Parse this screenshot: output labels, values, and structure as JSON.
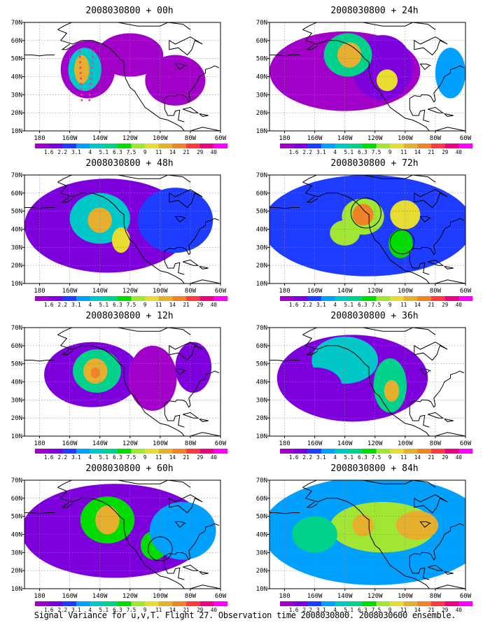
{
  "panels": [
    {
      "title": "2008030800 + 00h",
      "blobs": [
        {
          "lon": -148,
          "lat": 44,
          "rx": 18,
          "ry": 16,
          "v": 2
        },
        {
          "lon": -120,
          "lat": 52,
          "rx": 22,
          "ry": 12,
          "v": 1.7
        },
        {
          "lon": -90,
          "lat": 38,
          "rx": 20,
          "ry": 14,
          "v": 1.8
        },
        {
          "lon": -150,
          "lat": 44,
          "rx": 11,
          "ry": 12,
          "v": 6
        },
        {
          "lon": -152,
          "lat": 44,
          "rx": 5,
          "ry": 8,
          "v": 14
        }
      ],
      "obs_points": true
    },
    {
      "title": "2008030800 + 12h",
      "blobs": [
        {
          "lon": -145,
          "lat": 44,
          "rx": 32,
          "ry": 18,
          "v": 2.5
        },
        {
          "lon": -105,
          "lat": 42,
          "rx": 16,
          "ry": 18,
          "v": 2
        },
        {
          "lon": -78,
          "lat": 48,
          "rx": 12,
          "ry": 14,
          "v": 2.5
        },
        {
          "lon": -142,
          "lat": 46,
          "rx": 16,
          "ry": 12,
          "v": 7
        },
        {
          "lon": -143,
          "lat": 46,
          "rx": 8,
          "ry": 7,
          "v": 14
        },
        {
          "lon": -143,
          "lat": 45,
          "rx": 3,
          "ry": 3,
          "v": 21
        }
      ],
      "obs_points": false
    },
    {
      "title": "2008030800 + 24h",
      "blobs": [
        {
          "lon": -140,
          "lat": 43,
          "rx": 50,
          "ry": 22,
          "v": 2
        },
        {
          "lon": -115,
          "lat": 45,
          "rx": 20,
          "ry": 18,
          "v": 3
        },
        {
          "lon": -138,
          "lat": 52,
          "rx": 16,
          "ry": 12,
          "v": 7
        },
        {
          "lon": -137,
          "lat": 52,
          "rx": 8,
          "ry": 7,
          "v": 14
        },
        {
          "lon": -112,
          "lat": 38,
          "rx": 7,
          "ry": 6,
          "v": 11
        },
        {
          "lon": -70,
          "lat": 42,
          "rx": 10,
          "ry": 14,
          "v": 5
        }
      ],
      "obs_points": false
    },
    {
      "title": "2008030800 + 36h",
      "blobs": [
        {
          "lon": -135,
          "lat": 42,
          "rx": 50,
          "ry": 24,
          "v": 2.2
        },
        {
          "lon": -140,
          "lat": 52,
          "rx": 22,
          "ry": 13,
          "v": 6
        },
        {
          "lon": -110,
          "lat": 38,
          "rx": 11,
          "ry": 15,
          "v": 7
        },
        {
          "lon": -109,
          "lat": 35,
          "rx": 5,
          "ry": 6,
          "v": 14
        },
        {
          "lon": -160,
          "lat": 38,
          "rx": 18,
          "ry": 10,
          "v": 3
        }
      ],
      "obs_points": false
    },
    {
      "title": "2008030800 + 48h",
      "blobs": [
        {
          "lon": -135,
          "lat": 42,
          "rx": 55,
          "ry": 26,
          "v": 2.5
        },
        {
          "lon": -140,
          "lat": 46,
          "rx": 20,
          "ry": 14,
          "v": 6
        },
        {
          "lon": -140,
          "lat": 45,
          "rx": 8,
          "ry": 7,
          "v": 14
        },
        {
          "lon": -126,
          "lat": 34,
          "rx": 6,
          "ry": 7,
          "v": 11
        },
        {
          "lon": -90,
          "lat": 45,
          "rx": 25,
          "ry": 18,
          "v": 3.5
        }
      ],
      "obs_points": false
    },
    {
      "title": "2008030800 + 60h",
      "blobs": [
        {
          "lon": -130,
          "lat": 42,
          "rx": 62,
          "ry": 26,
          "v": 3
        },
        {
          "lon": -135,
          "lat": 48,
          "rx": 18,
          "ry": 13,
          "v": 7.5
        },
        {
          "lon": -135,
          "lat": 48,
          "rx": 8,
          "ry": 8,
          "v": 14
        },
        {
          "lon": -104,
          "lat": 34,
          "rx": 9,
          "ry": 8,
          "v": 8
        },
        {
          "lon": -85,
          "lat": 42,
          "rx": 22,
          "ry": 16,
          "v": 4
        }
      ],
      "circles": [
        {
          "lon": -100,
          "lat": 32,
          "r": 8
        }
      ],
      "obs_points": false
    },
    {
      "title": "2008030800 + 72h",
      "blobs": [
        {
          "lon": -125,
          "lat": 42,
          "rx": 70,
          "ry": 28,
          "v": 3.5
        },
        {
          "lon": -128,
          "lat": 47,
          "rx": 14,
          "ry": 10,
          "v": 9
        },
        {
          "lon": -128,
          "lat": 48,
          "rx": 7,
          "ry": 6,
          "v": 21
        },
        {
          "lon": -100,
          "lat": 48,
          "rx": 10,
          "ry": 8,
          "v": 11
        },
        {
          "lon": -103,
          "lat": 32,
          "rx": 8,
          "ry": 8,
          "v": 8
        },
        {
          "lon": -140,
          "lat": 38,
          "rx": 10,
          "ry": 7,
          "v": 9
        }
      ],
      "circles": [
        {
          "lon": -126,
          "lat": 49,
          "r": 10
        },
        {
          "lon": -102,
          "lat": 33,
          "r": 8
        }
      ],
      "obs_points": false
    },
    {
      "title": "2008030800 + 84h",
      "blobs": [
        {
          "lon": -120,
          "lat": 42,
          "rx": 75,
          "ry": 30,
          "v": 4
        },
        {
          "lon": -115,
          "lat": 44,
          "rx": 35,
          "ry": 14,
          "v": 9
        },
        {
          "lon": -92,
          "lat": 45,
          "rx": 14,
          "ry": 8,
          "v": 14
        },
        {
          "lon": -128,
          "lat": 45,
          "rx": 7,
          "ry": 6,
          "v": 14
        },
        {
          "lon": -160,
          "lat": 40,
          "rx": 15,
          "ry": 10,
          "v": 7
        }
      ],
      "obs_points": false
    }
  ],
  "colorbar": {
    "labels": [
      "1.6",
      "2.2",
      "3.1",
      "4",
      "5.1",
      "6.3",
      "7.5",
      "9",
      "11",
      "14",
      "21",
      "29",
      "40"
    ],
    "colors": [
      "#a000c8",
      "#7d00dc",
      "#1e3cff",
      "#00a0ff",
      "#00c8c8",
      "#00d28c",
      "#00dc00",
      "#a0e632",
      "#e6dc32",
      "#e6af2d",
      "#f08228",
      "#fa3c3c",
      "#f00082",
      "#ff00ff"
    ]
  },
  "axes": {
    "x_ticks": [
      {
        "lon": -180,
        "label": "180"
      },
      {
        "lon": -160,
        "label": "160W"
      },
      {
        "lon": -140,
        "label": "140W"
      },
      {
        "lon": -120,
        "label": "120W"
      },
      {
        "lon": -100,
        "label": "100W"
      },
      {
        "lon": -80,
        "label": "80W"
      },
      {
        "lon": -60,
        "label": "60W"
      }
    ],
    "y_ticks": [
      {
        "lat": 10,
        "label": "10N"
      },
      {
        "lat": 20,
        "label": "20N"
      },
      {
        "lat": 30,
        "label": "30N"
      },
      {
        "lat": 40,
        "label": "40N"
      },
      {
        "lat": 50,
        "label": "50N"
      },
      {
        "lat": 60,
        "label": "60N"
      },
      {
        "lat": 70,
        "label": "70N"
      }
    ],
    "lon_range": [
      -190,
      -60
    ],
    "lat_range": [
      10,
      70
    ]
  },
  "footer": "Signal Variance for u,v,T. Flight 27. Observation time 2008030800. 2008030600 ensemble."
}
